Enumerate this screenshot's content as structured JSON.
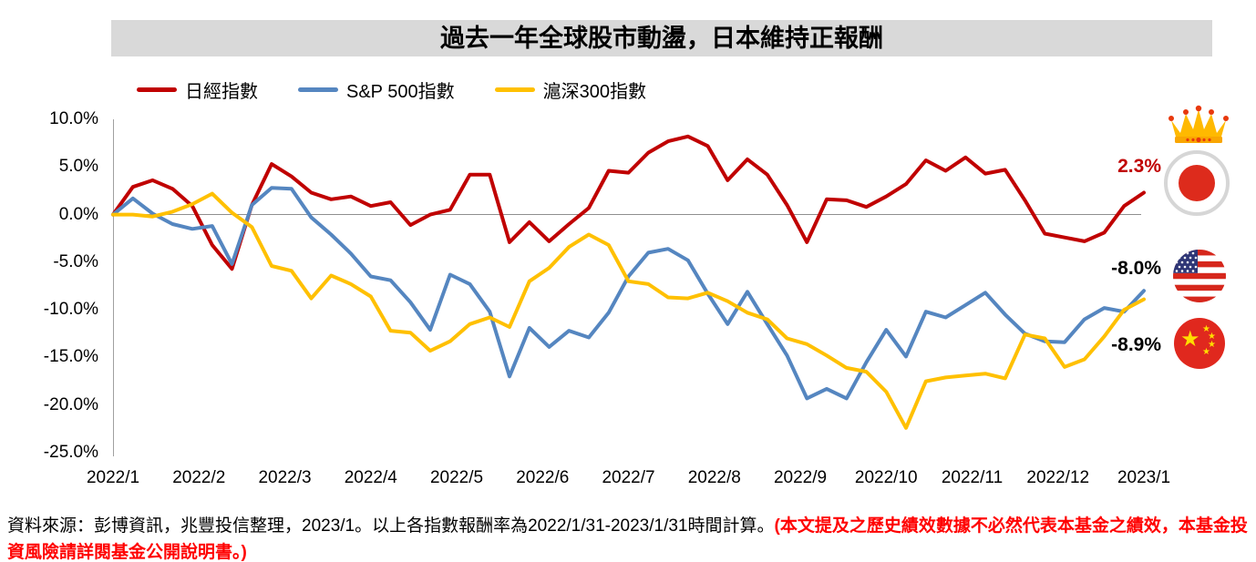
{
  "title": "過去一年全球股市動盪，日本維持正報酬",
  "legend": [
    {
      "label": "日經指數",
      "color": "#c00000"
    },
    {
      "label": "S&P 500指數",
      "color": "#5586c0"
    },
    {
      "label": "滬深300指數",
      "color": "#ffc000"
    }
  ],
  "chart_data": {
    "type": "line",
    "x_description": "weekly returns indexed to 0 at 2022/1/31, through 2023/1/31",
    "x_tick_labels": [
      "2022/1",
      "2022/2",
      "2022/3",
      "2022/4",
      "2022/5",
      "2022/6",
      "2022/7",
      "2022/8",
      "2022/9",
      "2022/10",
      "2022/11",
      "2022/12",
      "2023/1"
    ],
    "y_tick_labels": [
      "10.0%",
      "5.0%",
      "0.0%",
      "-5.0%",
      "-10.0%",
      "-15.0%",
      "-20.0%",
      "-25.0%"
    ],
    "ylim": [
      -25,
      10
    ],
    "grid": "zero-line-only",
    "legend_position": "top-left",
    "series": [
      {
        "name": "日經指數",
        "color": "#c00000",
        "end_label": "2.3%",
        "values": [
          0.0,
          2.9,
          3.6,
          2.7,
          0.9,
          -3.2,
          -5.7,
          1.0,
          5.3,
          4.0,
          2.3,
          1.6,
          1.9,
          0.9,
          1.3,
          -1.1,
          0.0,
          0.5,
          4.2,
          4.2,
          -2.9,
          -0.8,
          -2.8,
          -1.0,
          0.7,
          4.6,
          4.4,
          6.5,
          7.7,
          8.2,
          7.2,
          3.6,
          5.8,
          4.2,
          1.0,
          -2.9,
          1.6,
          1.5,
          0.8,
          1.9,
          3.2,
          5.7,
          4.6,
          6.0,
          4.3,
          4.7,
          1.5,
          -2.0,
          -2.4,
          -2.8,
          -1.9,
          0.9,
          2.3
        ]
      },
      {
        "name": "S&P 500指數",
        "color": "#5586c0",
        "end_label": "-8.0%",
        "values": [
          0.0,
          1.7,
          0.1,
          -1.0,
          -1.5,
          -1.2,
          -5.2,
          1.0,
          2.8,
          2.7,
          -0.3,
          -2.1,
          -4.1,
          -6.5,
          -6.9,
          -9.2,
          -12.1,
          -6.3,
          -7.3,
          -10.2,
          -17.0,
          -11.9,
          -13.9,
          -12.2,
          -12.9,
          -10.3,
          -6.5,
          -4.0,
          -3.6,
          -4.8,
          -8.3,
          -11.5,
          -8.1,
          -11.5,
          -14.8,
          -19.3,
          -18.3,
          -19.3,
          -15.5,
          -12.1,
          -14.9,
          -10.2,
          -10.8,
          -9.5,
          -8.2,
          -10.5,
          -12.5,
          -13.3,
          -13.4,
          -11.0,
          -9.8,
          -10.2,
          -8.0
        ]
      },
      {
        "name": "滬深300指數",
        "color": "#ffc000",
        "end_label": "-8.9%",
        "values": [
          0.0,
          0.0,
          -0.2,
          0.3,
          1.1,
          2.2,
          0.2,
          -1.3,
          -5.4,
          -5.9,
          -8.8,
          -6.4,
          -7.3,
          -8.6,
          -12.2,
          -12.4,
          -14.3,
          -13.3,
          -11.5,
          -10.8,
          -11.8,
          -7.0,
          -5.6,
          -3.4,
          -2.1,
          -3.2,
          -7.0,
          -7.3,
          -8.7,
          -8.8,
          -8.2,
          -9.1,
          -10.3,
          -11.0,
          -13.0,
          -13.6,
          -14.8,
          -16.1,
          -16.5,
          -18.6,
          -22.4,
          -17.5,
          -17.1,
          -16.9,
          -16.7,
          -17.2,
          -12.6,
          -13.0,
          -16.0,
          -15.2,
          -12.8,
          -10.0,
          -8.9
        ]
      }
    ]
  },
  "annotations": {
    "japan_return": "2.3%",
    "us_return": "-8.0%",
    "china_return": "-8.9%",
    "japan_return_color": "#c00000",
    "crown_color": "#ffb900"
  },
  "source_note": {
    "black": "資料來源：彭博資訊，兆豐投信整理，2023/1。以上各指數報酬率為2022/1/31-2023/1/31時間計算。",
    "red": "(本文提及之歷史績效數據不必然代表本基金之績效，本基金投資風險請詳閱基金公開說明書。)"
  }
}
